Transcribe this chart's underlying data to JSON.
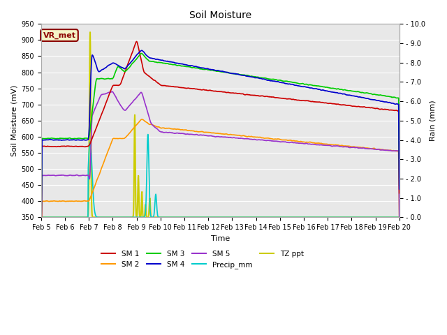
{
  "title": "Soil Moisture",
  "xlabel": "Time",
  "ylabel_left": "Soil Moisture (mV)",
  "ylabel_right": "Rain (mm)",
  "ylim_left": [
    350,
    950
  ],
  "ylim_right": [
    0.0,
    10.0
  ],
  "yticks_left": [
    350,
    400,
    450,
    500,
    550,
    600,
    650,
    700,
    750,
    800,
    850,
    900,
    950
  ],
  "yticks_right": [
    0.0,
    1.0,
    2.0,
    3.0,
    4.0,
    5.0,
    6.0,
    7.0,
    8.0,
    9.0,
    10.0
  ],
  "xtick_labels": [
    "Feb 5",
    "Feb 6",
    "Feb 7",
    "Feb 8",
    "Feb 9",
    "Feb 10",
    "Feb 11",
    "Feb 12",
    "Feb 13",
    "Feb 14",
    "Feb 15",
    "Feb 16",
    "Feb 17",
    "Feb 18",
    "Feb 19",
    "Feb 20"
  ],
  "fig_bg_color": "#ffffff",
  "plot_bg_color": "#e8e8e8",
  "grid_color": "#ffffff",
  "annotation_text": "VR_met",
  "annotation_color": "#8B0000",
  "annotation_bg": "#f5f5c8",
  "legend_entries": [
    {
      "label": "SM 1",
      "color": "#cc0000",
      "lw": 1.2
    },
    {
      "label": "SM 2",
      "color": "#ff9900",
      "lw": 1.2
    },
    {
      "label": "SM 3",
      "color": "#00cc00",
      "lw": 1.2
    },
    {
      "label": "SM 4",
      "color": "#0000cc",
      "lw": 1.2
    },
    {
      "label": "SM 5",
      "color": "#9933cc",
      "lw": 1.2
    },
    {
      "label": "Precip_mm",
      "color": "#00cccc",
      "lw": 1.2
    },
    {
      "label": "TZ ppt",
      "color": "#cccc00",
      "lw": 1.5
    }
  ],
  "n_points": 1500
}
